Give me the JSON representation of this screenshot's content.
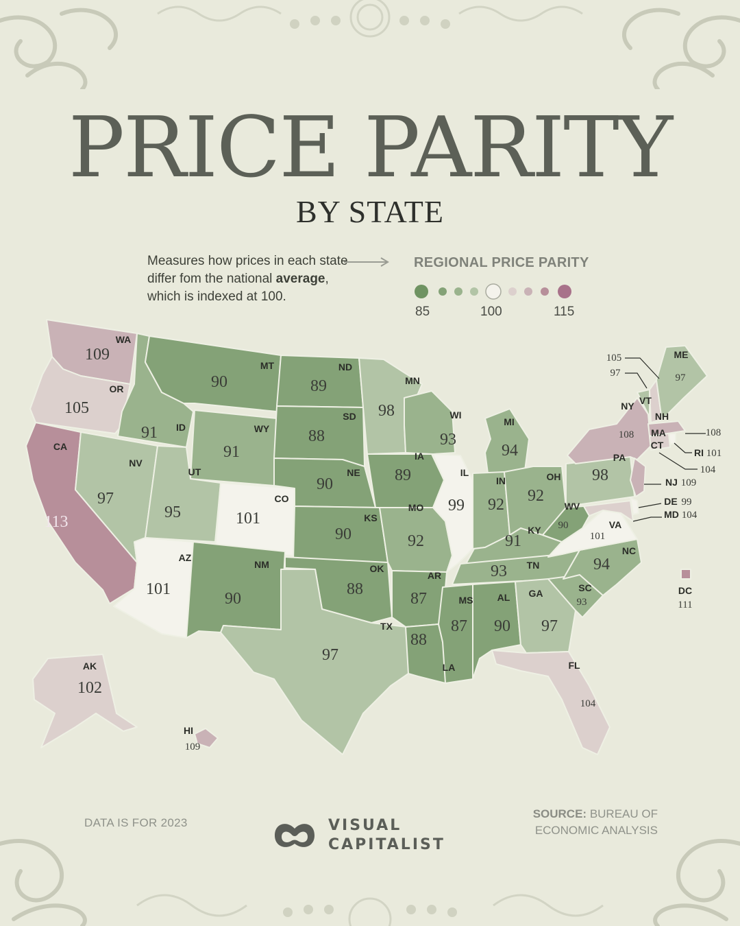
{
  "title": "PRICE PARITY",
  "subtitle": "BY STATE",
  "description": {
    "part1": "Measures how prices in each state differ fom the national ",
    "bold": "average",
    "part2": ", which is indexed at 100."
  },
  "legend": {
    "title": "REGIONAL PRICE PARITY",
    "min_label": "85",
    "mid_label": "100",
    "max_label": "115",
    "colors": [
      "#6f9362",
      "#84a277",
      "#9ab38d",
      "#b2c4a6",
      "#f4f3ec",
      "#dcd0cd",
      "#c9b2b6",
      "#b78f9a",
      "#a8728a"
    ]
  },
  "states": [
    {
      "abbr": "WA",
      "value": "109"
    },
    {
      "abbr": "OR",
      "value": "105"
    },
    {
      "abbr": "CA",
      "value": "113"
    },
    {
      "abbr": "ID",
      "value": "91"
    },
    {
      "abbr": "NV",
      "value": "97"
    },
    {
      "abbr": "MT",
      "value": "90"
    },
    {
      "abbr": "WY",
      "value": "91"
    },
    {
      "abbr": "UT",
      "value": "95"
    },
    {
      "abbr": "AZ",
      "value": "101"
    },
    {
      "abbr": "CO",
      "value": "101"
    },
    {
      "abbr": "NM",
      "value": "90"
    },
    {
      "abbr": "ND",
      "value": "89"
    },
    {
      "abbr": "SD",
      "value": "88"
    },
    {
      "abbr": "NE",
      "value": "90"
    },
    {
      "abbr": "KS",
      "value": "90"
    },
    {
      "abbr": "OK",
      "value": "88"
    },
    {
      "abbr": "TX",
      "value": "97"
    },
    {
      "abbr": "MN",
      "value": "98"
    },
    {
      "abbr": "IA",
      "value": "89"
    },
    {
      "abbr": "MO",
      "value": "92"
    },
    {
      "abbr": "AR",
      "value": "87"
    },
    {
      "abbr": "LA",
      "value": "88"
    },
    {
      "abbr": "WI",
      "value": "93"
    },
    {
      "abbr": "IL",
      "value": "99"
    },
    {
      "abbr": "MI",
      "value": "94"
    },
    {
      "abbr": "IN",
      "value": "92"
    },
    {
      "abbr": "OH",
      "value": "92"
    },
    {
      "abbr": "KY",
      "value": "91"
    },
    {
      "abbr": "TN",
      "value": "93"
    },
    {
      "abbr": "MS",
      "value": "87"
    },
    {
      "abbr": "AL",
      "value": "90"
    },
    {
      "abbr": "GA",
      "value": "97"
    },
    {
      "abbr": "FL",
      "value": "104"
    },
    {
      "abbr": "SC",
      "value": "93"
    },
    {
      "abbr": "NC",
      "value": "94"
    },
    {
      "abbr": "VA",
      "value": "101"
    },
    {
      "abbr": "WV",
      "value": "90"
    },
    {
      "abbr": "PA",
      "value": "98"
    },
    {
      "abbr": "NY",
      "value": "108"
    },
    {
      "abbr": "VT",
      "value": "97"
    },
    {
      "abbr": "NH",
      "value": "105"
    },
    {
      "abbr": "ME",
      "value": "97"
    },
    {
      "abbr": "MA",
      "value": "108"
    },
    {
      "abbr": "CT",
      "value": "104"
    },
    {
      "abbr": "RI",
      "value": "101"
    },
    {
      "abbr": "NJ",
      "value": "109"
    },
    {
      "abbr": "DE",
      "value": "99"
    },
    {
      "abbr": "MD",
      "value": "104"
    },
    {
      "abbr": "DC",
      "value": "111"
    },
    {
      "abbr": "AK",
      "value": "102"
    },
    {
      "abbr": "HI",
      "value": "109"
    }
  ],
  "footer": {
    "data_note": "DATA IS FOR 2023",
    "brand_line1": "VISUAL",
    "brand_line2": "CAPITALIST",
    "source_label": "SOURCE:",
    "source_text": " BUREAU OF ECONOMIC ANALYSIS"
  }
}
